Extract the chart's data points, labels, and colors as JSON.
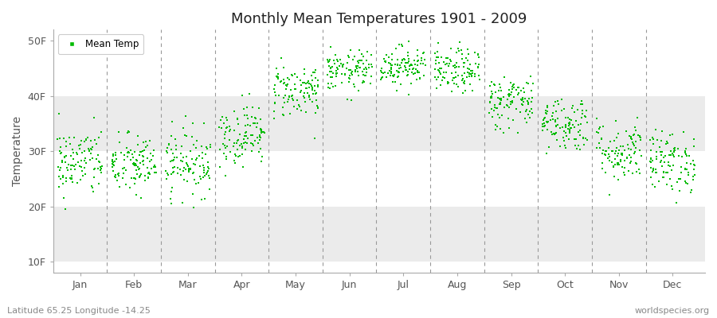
{
  "title": "Monthly Mean Temperatures 1901 - 2009",
  "ylabel": "Temperature",
  "xlabel_bottom_left": "Latitude 65.25 Longitude -14.25",
  "xlabel_bottom_right": "worldspecies.org",
  "legend_label": "Mean Temp",
  "dot_color": "#00BB00",
  "background_color": "#ffffff",
  "plot_bg_color": "#ffffff",
  "strip_color": "#ebebeb",
  "ytick_labels": [
    "10F",
    "20F",
    "30F",
    "40F",
    "50F"
  ],
  "ytick_values": [
    10,
    20,
    30,
    40,
    50
  ],
  "ylim": [
    8,
    52
  ],
  "xlim": [
    0.5,
    12.6
  ],
  "months": [
    "Jan",
    "Feb",
    "Mar",
    "Apr",
    "May",
    "Jun",
    "Jul",
    "Aug",
    "Sep",
    "Oct",
    "Nov",
    "Dec"
  ],
  "month_centers": [
    1,
    2,
    3,
    4,
    5,
    6,
    7,
    8,
    9,
    10,
    11,
    12
  ],
  "month_mean_temps_F": [
    28.0,
    27.5,
    28.0,
    33.0,
    41.0,
    44.5,
    45.5,
    44.5,
    39.0,
    35.0,
    30.0,
    28.0
  ],
  "month_std_F": [
    3.2,
    2.8,
    3.0,
    2.8,
    2.5,
    1.8,
    1.8,
    2.0,
    2.5,
    2.5,
    2.8,
    2.8
  ],
  "n_years": 109,
  "seed": 42,
  "dot_size": 4,
  "title_fontsize": 13,
  "tick_fontsize": 9,
  "ylabel_fontsize": 10
}
